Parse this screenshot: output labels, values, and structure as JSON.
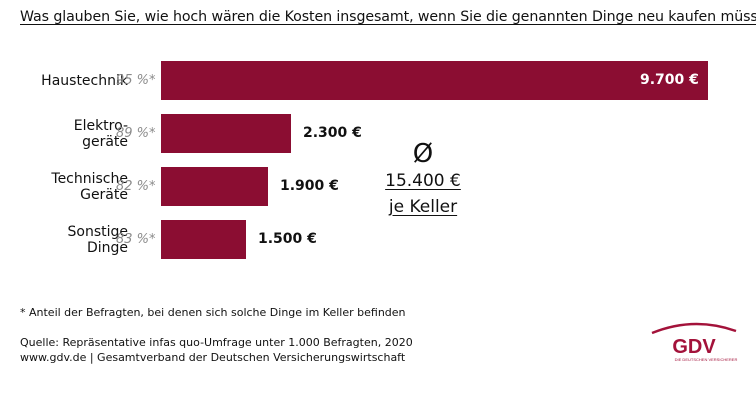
{
  "title": "Was glauben Sie, wie hoch wären die Kosten insgesamt, wenn Sie die genannten Dinge neu kaufen müssten?",
  "chart_data": {
    "type": "bar",
    "orientation": "horizontal",
    "categories": [
      "Haustechnik",
      "Elektro-\ngeräte",
      "Technische\nGeräte",
      "Sonstige\nDinge"
    ],
    "values": [
      9700,
      2300,
      1900,
      1500
    ],
    "value_labels": [
      "9.700 €",
      "2.300 €",
      "1.900 €",
      "1.500 €"
    ],
    "shares": [
      "95 %*",
      "89 %*",
      "82 %*",
      "83 %*"
    ],
    "color": "#8b0d32",
    "xlim": [
      0,
      9700
    ]
  },
  "average": {
    "symbol": "Ø",
    "value": "15.400 €",
    "label": "je Keller"
  },
  "footnote": "* Anteil der Befragten, bei denen sich solche Dinge im Keller befinden",
  "source": "Quelle: Repräsentative infas quo-Umfrage unter 1.000 Befragten, 2020",
  "publisher": "www.gdv.de | Gesamtverband der Deutschen Versicherungswirtschaft",
  "logo": {
    "text": "GDV",
    "subtext": "DIE DEUTSCHEN VERSICHERER",
    "color": "#a3123a"
  }
}
